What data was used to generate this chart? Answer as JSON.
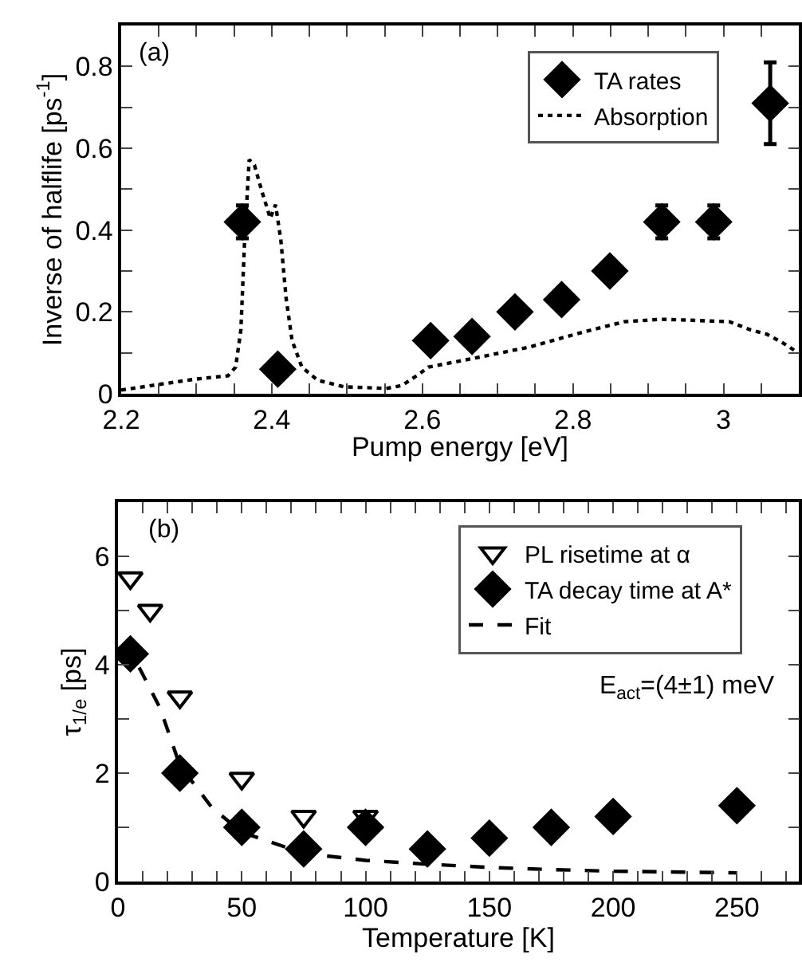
{
  "chart_data": [
    {
      "type": "scatter",
      "xlabel": "Pump energy [eV]",
      "ylabel": "Inverse of halflife [ps$^{-1}$]",
      "annotations": [
        "(a)"
      ],
      "legend": "top right",
      "grid": false,
      "xlim": [
        2.2,
        3.1
      ],
      "xticks": [
        2.2,
        {
          "value": 2.25,
          "label": null
        },
        {
          "value": 2.3,
          "label": null
        },
        {
          "value": 2.35,
          "label": null
        },
        2.4,
        {
          "value": 2.45,
          "label": null
        },
        {
          "value": 2.5,
          "label": null
        },
        {
          "value": 2.55,
          "label": null
        },
        2.6,
        {
          "value": 2.65,
          "label": null
        },
        {
          "value": 2.7,
          "label": null
        },
        {
          "value": 2.75,
          "label": null
        },
        2.8,
        {
          "value": 2.85,
          "label": null
        },
        {
          "value": 2.9,
          "label": null
        },
        {
          "value": 2.95,
          "label": null
        },
        3,
        {
          "value": 3.05,
          "label": null
        }
      ],
      "ylim": [
        0,
        0.9
      ],
      "yticks": [
        0,
        {
          "value": 0.1,
          "label": null
        },
        0.2,
        {
          "value": 0.3,
          "label": null
        },
        0.4,
        {
          "value": 0.5,
          "label": null
        },
        0.6,
        {
          "value": 0.7,
          "label": null
        },
        0.8
      ],
      "series": [
        {
          "name": "TA rates",
          "type": "scatter",
          "marker": "diamond",
          "color": "#000000",
          "x": [
            2.361,
            2.408,
            2.611,
            2.666,
            2.723,
            2.785,
            2.849,
            2.918,
            2.987,
            3.062
          ],
          "values": [
            0.42,
            0.06,
            0.13,
            0.14,
            0.2,
            0.23,
            0.3,
            0.42,
            0.42,
            0.71
          ],
          "errors": [
            0.04,
            null,
            null,
            null,
            null,
            null,
            null,
            0.04,
            0.04,
            [
              0.61,
              0.81
            ]
          ]
        },
        {
          "name": "Absorption",
          "type": "line",
          "marker": "none",
          "line_style": "dotted",
          "color": "#000000",
          "x": [
            2.2,
            2.251,
            2.3,
            2.342,
            2.352,
            2.359,
            2.364,
            2.37,
            2.377,
            2.387,
            2.398,
            2.405,
            2.412,
            2.419,
            2.427,
            2.44,
            2.461,
            2.496,
            2.552,
            2.573,
            2.594,
            2.608,
            2.672,
            2.742,
            2.812,
            2.868,
            2.917,
            2.952,
            3.008,
            3.036,
            3.057,
            3.079,
            3.096
          ],
          "values": [
            0.009,
            0.023,
            0.036,
            0.044,
            0.065,
            0.156,
            0.377,
            0.572,
            0.559,
            0.494,
            0.429,
            0.462,
            0.377,
            0.234,
            0.13,
            0.065,
            0.033,
            0.017,
            0.013,
            0.02,
            0.046,
            0.065,
            0.088,
            0.114,
            0.15,
            0.176,
            0.182,
            0.18,
            0.176,
            0.156,
            0.146,
            0.124,
            0.104
          ]
        }
      ]
    },
    {
      "type": "scatter",
      "xlabel": "Temperature [K]",
      "ylabel": "τ$_{1/e}$ [ps]",
      "annotations": [
        "(b)",
        "E$_{act}$=(4±1) meV"
      ],
      "legend": "top right",
      "grid": false,
      "xlim": [
        0,
        275
      ],
      "xticks": [
        0,
        {
          "value": 10,
          "label": null
        },
        {
          "value": 20,
          "label": null
        },
        {
          "value": 30,
          "label": null
        },
        {
          "value": 40,
          "label": null
        },
        50,
        {
          "value": 60,
          "label": null
        },
        {
          "value": 70,
          "label": null
        },
        {
          "value": 80,
          "label": null
        },
        {
          "value": 90,
          "label": null
        },
        100,
        {
          "value": 110,
          "label": null
        },
        {
          "value": 120,
          "label": null
        },
        {
          "value": 130,
          "label": null
        },
        {
          "value": 140,
          "label": null
        },
        150,
        {
          "value": 160,
          "label": null
        },
        {
          "value": 170,
          "label": null
        },
        {
          "value": 180,
          "label": null
        },
        {
          "value": 190,
          "label": null
        },
        200,
        {
          "value": 210,
          "label": null
        },
        {
          "value": 220,
          "label": null
        },
        {
          "value": 230,
          "label": null
        },
        {
          "value": 240,
          "label": null
        },
        250,
        {
          "value": 260,
          "label": null
        },
        {
          "value": 270,
          "label": null
        }
      ],
      "ylim": [
        0,
        7
      ],
      "yticks": [
        0,
        {
          "value": 1,
          "label": null
        },
        2,
        {
          "value": 3,
          "label": null
        },
        4,
        {
          "value": 5,
          "label": null
        },
        6
      ],
      "series": [
        {
          "name": "PL risetime at α",
          "type": "scatter",
          "marker": "triangle-down",
          "color": "#000000",
          "x": [
            5,
            13,
            25,
            50,
            75,
            100
          ],
          "values": [
            5.6,
            5.0,
            3.4,
            1.9,
            1.2,
            1.2
          ]
        },
        {
          "name": "TA decay time at A*",
          "type": "scatter",
          "marker": "diamond",
          "color": "#000000",
          "x": [
            5,
            25,
            50,
            75,
            100,
            125,
            150,
            175,
            200,
            250
          ],
          "values": [
            4.2,
            2.0,
            1.0,
            0.6,
            1.0,
            0.6,
            0.8,
            1.0,
            1.2,
            1.4
          ]
        },
        {
          "name": "Fit",
          "type": "line",
          "marker": "none",
          "line_style": "dashed",
          "color": "#000000",
          "x": [
            0,
            8,
            17,
            25,
            38,
            50,
            75,
            100,
            125,
            150,
            175,
            200,
            250
          ],
          "values": [
            4.3,
            4.0,
            3.2,
            2.14,
            1.36,
            0.91,
            0.52,
            0.39,
            0.32,
            0.26,
            0.22,
            0.19,
            0.16
          ]
        }
      ]
    }
  ]
}
